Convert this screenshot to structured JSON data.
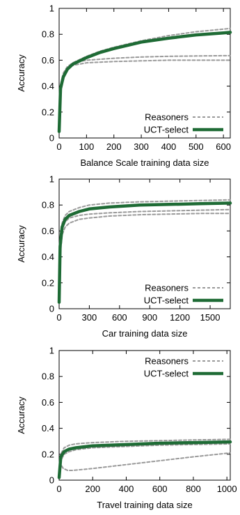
{
  "chart_data": [
    {
      "type": "line",
      "xlabel": "Balance Scale training data size",
      "ylabel": "Accuracy",
      "xlim": [
        0,
        625
      ],
      "ylim": [
        0,
        1
      ],
      "xticks": [
        0,
        100,
        200,
        300,
        400,
        500,
        600
      ],
      "yticks": [
        0,
        0.2,
        0.4,
        0.6,
        0.8,
        1
      ],
      "ytick_labels": [
        "0",
        "0.2",
        "0.4",
        "0.6",
        "0.8",
        "1"
      ],
      "legend_position": "bottom-right",
      "legend": [
        {
          "label": "Reasoners",
          "style": "dashed",
          "color": "#999999"
        },
        {
          "label": "UCT-select",
          "style": "solid",
          "color": "#1e6b35"
        }
      ],
      "series": [
        {
          "name": "Reasoners",
          "style": "dashed",
          "color": "#999999",
          "x": [
            0,
            5,
            15,
            30,
            50,
            100,
            150,
            200,
            300,
            400,
            500,
            600,
            625
          ],
          "y": [
            0.05,
            0.38,
            0.48,
            0.54,
            0.58,
            0.63,
            0.67,
            0.7,
            0.75,
            0.79,
            0.82,
            0.84,
            0.845
          ]
        },
        {
          "name": "Reasoners",
          "style": "dashed",
          "color": "#999999",
          "x": [
            0,
            5,
            15,
            30,
            50,
            100,
            200,
            300,
            400,
            500,
            600,
            625
          ],
          "y": [
            0.05,
            0.4,
            0.5,
            0.55,
            0.58,
            0.6,
            0.615,
            0.625,
            0.63,
            0.633,
            0.635,
            0.635
          ]
        },
        {
          "name": "Reasoners",
          "style": "dashed",
          "color": "#999999",
          "x": [
            0,
            5,
            15,
            30,
            50,
            100,
            200,
            300,
            400,
            500,
            600,
            625
          ],
          "y": [
            0.05,
            0.35,
            0.47,
            0.53,
            0.56,
            0.58,
            0.59,
            0.595,
            0.6,
            0.6,
            0.6,
            0.6
          ]
        },
        {
          "name": "UCT-select",
          "style": "solid",
          "color": "#1e6b35",
          "x": [
            0,
            5,
            15,
            30,
            50,
            100,
            150,
            200,
            300,
            400,
            500,
            600,
            625
          ],
          "y": [
            0.05,
            0.38,
            0.47,
            0.53,
            0.57,
            0.62,
            0.66,
            0.69,
            0.74,
            0.77,
            0.795,
            0.81,
            0.815
          ]
        }
      ]
    },
    {
      "type": "line",
      "xlabel": "Car training data size",
      "ylabel": "Accuracy",
      "xlim": [
        0,
        1700
      ],
      "ylim": [
        0,
        1
      ],
      "xticks": [
        0,
        300,
        600,
        900,
        1200,
        1500
      ],
      "yticks": [
        0,
        0.2,
        0.4,
        0.6,
        0.8,
        1
      ],
      "ytick_labels": [
        "0",
        "0.2",
        "0.4",
        "0.6",
        "0.8",
        "1"
      ],
      "legend_position": "bottom-right",
      "legend": [
        {
          "label": "Reasoners",
          "style": "dashed",
          "color": "#999999"
        },
        {
          "label": "UCT-select",
          "style": "solid",
          "color": "#1e6b35"
        }
      ],
      "series": [
        {
          "name": "Reasoners",
          "style": "dashed",
          "color": "#999999",
          "x": [
            0,
            10,
            30,
            60,
            100,
            200,
            300,
            500,
            800,
            1100,
            1400,
            1700
          ],
          "y": [
            0.05,
            0.5,
            0.66,
            0.72,
            0.75,
            0.78,
            0.8,
            0.815,
            0.825,
            0.83,
            0.835,
            0.84
          ]
        },
        {
          "name": "Reasoners",
          "style": "dashed",
          "color": "#999999",
          "x": [
            0,
            10,
            30,
            60,
            100,
            200,
            300,
            500,
            800,
            1100,
            1400,
            1700
          ],
          "y": [
            0.05,
            0.45,
            0.61,
            0.67,
            0.7,
            0.72,
            0.73,
            0.74,
            0.75,
            0.755,
            0.76,
            0.765
          ]
        },
        {
          "name": "Reasoners",
          "style": "dashed",
          "color": "#999999",
          "x": [
            0,
            10,
            30,
            60,
            100,
            200,
            300,
            500,
            800,
            1100,
            1400,
            1700
          ],
          "y": [
            0.05,
            0.4,
            0.57,
            0.63,
            0.66,
            0.69,
            0.7,
            0.715,
            0.725,
            0.73,
            0.735,
            0.735
          ]
        },
        {
          "name": "UCT-select",
          "style": "solid",
          "color": "#1e6b35",
          "x": [
            0,
            10,
            30,
            60,
            100,
            200,
            300,
            500,
            800,
            1100,
            1400,
            1700
          ],
          "y": [
            0.05,
            0.48,
            0.63,
            0.69,
            0.72,
            0.75,
            0.77,
            0.785,
            0.8,
            0.805,
            0.81,
            0.815
          ]
        }
      ]
    },
    {
      "type": "line",
      "xlabel": "Travel training data size",
      "ylabel": "Accuracy",
      "xlim": [
        0,
        1020
      ],
      "ylim": [
        0,
        1
      ],
      "xticks": [
        0,
        200,
        400,
        600,
        800,
        1000
      ],
      "yticks": [
        0,
        0.2,
        0.4,
        0.6,
        0.8,
        1
      ],
      "ytick_labels": [
        "0",
        "0.2",
        "0.4",
        "0.6",
        "0.8",
        "1"
      ],
      "legend_position": "top-right",
      "legend": [
        {
          "label": "Reasoners",
          "style": "dashed",
          "color": "#999999"
        },
        {
          "label": "UCT-select",
          "style": "solid",
          "color": "#1e6b35"
        }
      ],
      "series": [
        {
          "name": "Reasoners",
          "style": "dashed",
          "color": "#999999",
          "x": [
            0,
            10,
            30,
            60,
            100,
            200,
            400,
            600,
            800,
            1020
          ],
          "y": [
            0.02,
            0.2,
            0.25,
            0.27,
            0.28,
            0.29,
            0.3,
            0.305,
            0.31,
            0.315
          ]
        },
        {
          "name": "Reasoners",
          "style": "dashed",
          "color": "#999999",
          "x": [
            0,
            10,
            30,
            60,
            100,
            200,
            400,
            600,
            800,
            1020
          ],
          "y": [
            0.02,
            0.15,
            0.2,
            0.22,
            0.235,
            0.25,
            0.26,
            0.27,
            0.275,
            0.28
          ]
        },
        {
          "name": "Reasoners",
          "style": "dashed",
          "color": "#999999",
          "x": [
            0,
            10,
            25,
            50,
            80,
            120,
            200,
            400,
            600,
            800,
            1020
          ],
          "y": [
            0.02,
            0.12,
            0.09,
            0.075,
            0.075,
            0.08,
            0.09,
            0.12,
            0.15,
            0.18,
            0.21
          ]
        },
        {
          "name": "UCT-select",
          "style": "solid",
          "color": "#1e6b35",
          "x": [
            0,
            10,
            30,
            60,
            100,
            200,
            400,
            600,
            800,
            1020
          ],
          "y": [
            0.02,
            0.18,
            0.22,
            0.24,
            0.25,
            0.265,
            0.275,
            0.285,
            0.29,
            0.295
          ]
        }
      ]
    }
  ]
}
